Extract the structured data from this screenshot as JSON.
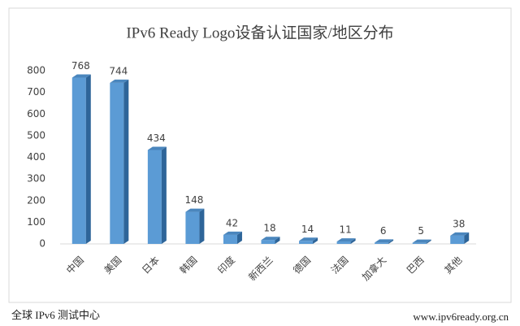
{
  "chart_data": {
    "type": "bar3d",
    "title": "IPv6 Ready Logo设备认证国家/地区分布",
    "categories": [
      "中国",
      "美国",
      "日本",
      "韩国",
      "印度",
      "新西兰",
      "德国",
      "法国",
      "加拿大",
      "巴西",
      "其他"
    ],
    "values": [
      768,
      744,
      434,
      148,
      42,
      18,
      14,
      11,
      6,
      5,
      38
    ],
    "color": "#5b9bd5",
    "ylim": [
      0,
      800
    ],
    "yticks": [
      0,
      100,
      200,
      300,
      400,
      500,
      600,
      700,
      800
    ]
  },
  "footer": {
    "left": "全球 IPv6 测试中心",
    "right": "www.ipv6ready.org.cn"
  }
}
